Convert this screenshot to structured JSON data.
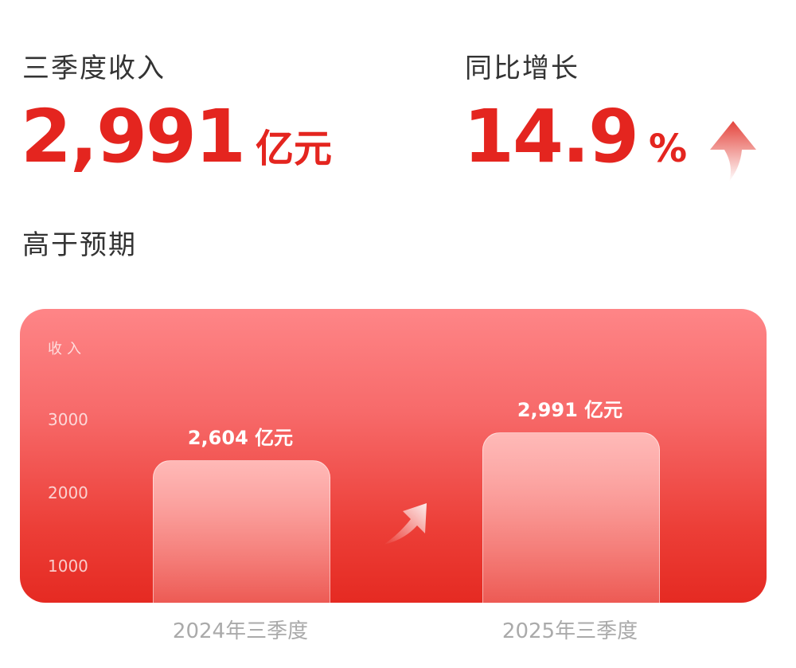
{
  "revenue": {
    "label": "三季度收入",
    "value": "2,991",
    "unit": "亿元"
  },
  "growth": {
    "label": "同比增长",
    "value": "14.9",
    "unit": "%",
    "icon": "arrow-up-icon"
  },
  "note": "高于预期",
  "colors": {
    "accent": "#e4251f",
    "card_top": "#fe8587",
    "card_bottom": "#e52a22"
  },
  "chart_data": {
    "type": "bar",
    "ylabel": "收入",
    "yticks": [
      1000,
      2000,
      3000
    ],
    "categories": [
      "2024年三季度",
      "2025年三季度"
    ],
    "values": [
      2604,
      2991
    ],
    "data_labels": [
      "2,604 亿元",
      "2,991 亿元"
    ],
    "grid": false
  }
}
